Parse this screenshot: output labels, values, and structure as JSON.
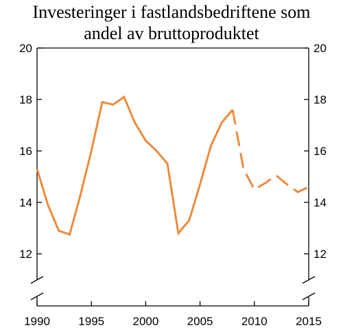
{
  "chart_data": {
    "type": "line",
    "title_lines": [
      "Investeringer i fastlandsbedriftene som",
      "andel av bruttoproduktet"
    ],
    "xlabel": "",
    "ylabel": "",
    "xlim": [
      1990,
      2015
    ],
    "ylim": [
      11,
      20
    ],
    "axis_break": true,
    "x_ticks": [
      1990,
      1995,
      2000,
      2005,
      2010,
      2015
    ],
    "y_ticks": [
      12,
      14,
      16,
      18,
      20
    ],
    "y_ticks_right": true,
    "grid": false,
    "colors": {
      "series": "#ee8a3c",
      "axis": "#000000"
    },
    "series": [
      {
        "style": "solid",
        "x": [
          1990,
          1991,
          1992,
          1993,
          1994,
          1995,
          1996,
          1997,
          1998,
          1999,
          2000,
          2001,
          2002,
          2003,
          2004,
          2005,
          2006,
          2007,
          2008
        ],
        "y": [
          15.3,
          13.9,
          12.9,
          12.75,
          14.3,
          16.0,
          17.9,
          17.8,
          18.1,
          17.1,
          16.4,
          16.0,
          15.5,
          12.8,
          13.3,
          14.7,
          16.2,
          17.1,
          17.6
        ]
      },
      {
        "style": "dashed",
        "x": [
          2008,
          2009,
          2010,
          2011,
          2012,
          2013,
          2014,
          2015
        ],
        "y": [
          17.6,
          15.3,
          14.5,
          14.75,
          15.05,
          14.7,
          14.4,
          14.6
        ]
      }
    ]
  }
}
